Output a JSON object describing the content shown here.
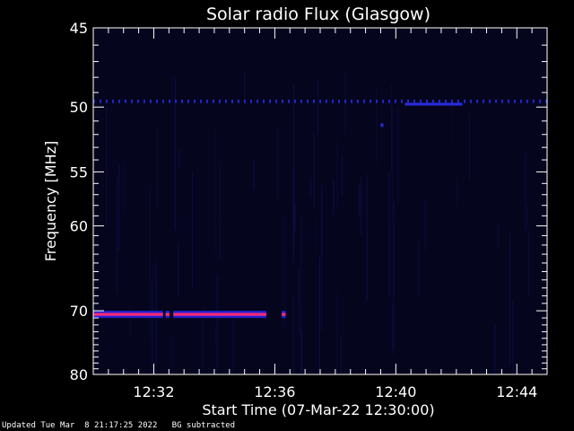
{
  "chart_data": {
    "type": "heatmap",
    "title": "Solar radio Flux (Glasgow)",
    "xlabel": "Start Time (07-Mar-22 12:30:00)",
    "ylabel": "Frequency [MHz]",
    "x_start": "12:30:00",
    "x_end": "12:45:00",
    "xlim_minutes": [
      0,
      15
    ],
    "x_ticks": [
      {
        "minute": 2,
        "label": "12:32"
      },
      {
        "minute": 6,
        "label": "12:36"
      },
      {
        "minute": 10,
        "label": "12:40"
      },
      {
        "minute": 14,
        "label": "12:44"
      }
    ],
    "ylim": [
      45,
      80
    ],
    "y_ticks": [
      45,
      50,
      55,
      60,
      70,
      80
    ],
    "y_scale": "reciprocal (inverted)",
    "colors": {
      "background": "#000000",
      "plot_background": "#05051e",
      "axis": "#ffffff",
      "line_50mhz": "#1e1ecc",
      "emission_core": "#ff2a7a",
      "emission_edge": "#2020d0"
    },
    "features": [
      {
        "name": "",
        "freq_mhz": 49.6,
        "minute_from": 0,
        "minute_to": 15,
        "style": "dashed",
        "color": "#2323c8"
      },
      {
        "name": "",
        "freq_mhz": 49.8,
        "minute_from": 10.3,
        "minute_to": 12.2,
        "style": "solid",
        "color": "#2a2ae0"
      },
      {
        "name": "",
        "freq_mhz": 70.5,
        "minute_from": 0,
        "minute_to": 6.4,
        "style": "band",
        "color": "#ff2a7a"
      }
    ]
  },
  "footer": {
    "updated": "Updated Tue Mar  8 21:17:25 2022",
    "bg_note": "BG subtracted"
  }
}
